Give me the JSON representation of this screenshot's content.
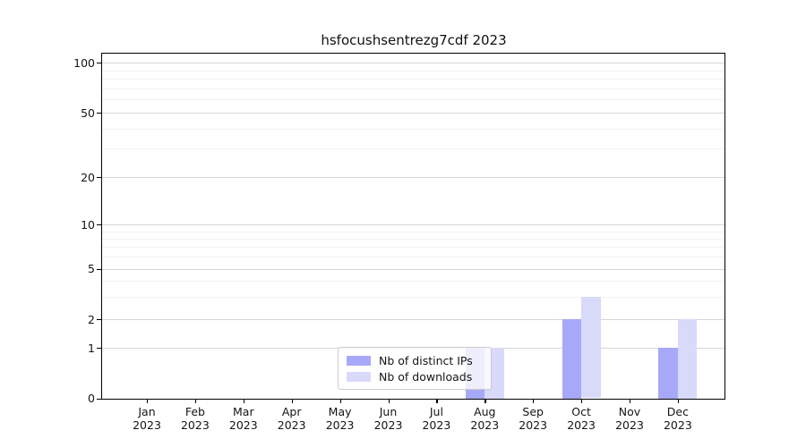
{
  "title": "hsfocushsentrezg7cdf 2023",
  "legend": {
    "items": [
      {
        "label": "Nb of distinct IPs",
        "color": "#a8a8f8"
      },
      {
        "label": "Nb of downloads",
        "color": "#d9d9fa"
      }
    ]
  },
  "chart_data": {
    "type": "bar",
    "title": "hsfocushsentrezg7cdf 2023",
    "categories": [
      "Jan 2023",
      "Feb 2023",
      "Mar 2023",
      "Apr 2023",
      "May 2023",
      "Jun 2023",
      "Jul 2023",
      "Aug 2023",
      "Sep 2023",
      "Oct 2023",
      "Nov 2023",
      "Dec 2023"
    ],
    "series": [
      {
        "name": "Nb of distinct IPs",
        "color": "#a8a8f8",
        "values": [
          0,
          0,
          0,
          0,
          0,
          0,
          0,
          1,
          0,
          2,
          0,
          1
        ]
      },
      {
        "name": "Nb of downloads",
        "color": "#d9d9fa",
        "values": [
          0,
          0,
          0,
          0,
          0,
          0,
          0,
          1,
          0,
          3,
          0,
          2
        ]
      }
    ],
    "yscale": "symlog",
    "ylim": [
      0,
      115
    ],
    "yticks": [
      0,
      1,
      2,
      5,
      10,
      20,
      50,
      100
    ],
    "ytick_labels": [
      "0",
      "1",
      "2",
      "5",
      "10",
      "20",
      "50",
      "100"
    ],
    "minor_yticks": [
      3,
      4,
      6,
      7,
      8,
      9,
      30,
      40,
      60,
      70,
      80,
      90
    ],
    "grid": "horizontal-major-and-minor",
    "legend_position": "lower center",
    "bar_group_width": 0.8
  },
  "colors": {
    "grid_major": "#d6d6d6",
    "grid_minor": "#f1f1f1",
    "axis": "#000000",
    "background": "#ffffff"
  }
}
